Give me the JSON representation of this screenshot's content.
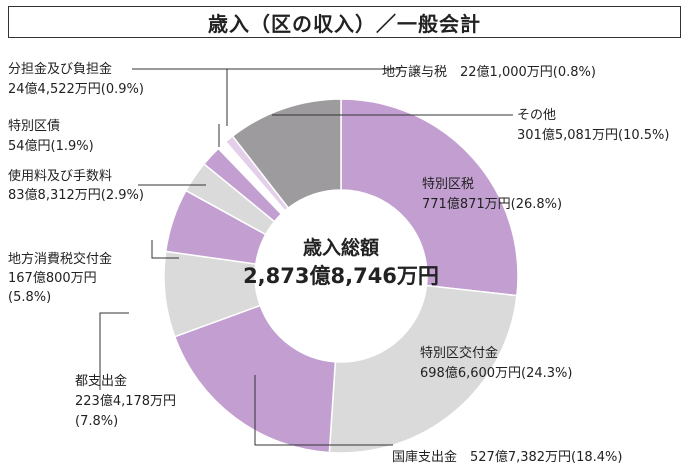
{
  "chart_data": {
    "type": "pie",
    "title": "歳入（区の収入）／一般会計",
    "center_caption": "歳入総額",
    "center_value": "2,873億8,746万円",
    "slices": [
      {
        "name": "特別区税",
        "amount": "771億871万円",
        "percent_label": "(26.8%)",
        "value": 26.8,
        "color": "#c29fd0"
      },
      {
        "name": "特別区交付金",
        "amount": "698億6,600万円",
        "percent_label": "(24.3%)",
        "value": 24.3,
        "color": "#dadada"
      },
      {
        "name": "国庫支出金",
        "amount": "527億7,382万円",
        "percent_label": "(18.4%)",
        "value": 18.4,
        "color": "#c29fd0"
      },
      {
        "name": "都支出金",
        "amount": "223億4,178万円",
        "percent_label": "(7.8%)",
        "value": 7.8,
        "color": "#dadada"
      },
      {
        "name": "地方消費税交付金",
        "amount": "167億800万円",
        "percent_label": "(5.8%)",
        "value": 5.8,
        "color": "#c29fd0"
      },
      {
        "name": "使用料及び手数料",
        "amount": "83億8,312万円",
        "percent_label": "(2.9%)",
        "value": 2.9,
        "color": "#dadada"
      },
      {
        "name": "特別区債",
        "amount": "54億円",
        "percent_label": "(1.9%)",
        "value": 1.9,
        "color": "#c29fd0"
      },
      {
        "name": "分担金及び負担金",
        "amount": "24億4,522万円",
        "percent_label": "(0.9%)",
        "value": 0.9,
        "color": "#ffffff"
      },
      {
        "name": "地方譲与税",
        "amount": "22億1,000万円",
        "percent_label": "(0.8%)",
        "value": 0.8,
        "color": "#e3cfe9"
      },
      {
        "name": "その他",
        "amount": "301億5,081万円",
        "percent_label": "(10.5%)",
        "value": 10.5,
        "color": "#9e9b9e"
      }
    ]
  }
}
